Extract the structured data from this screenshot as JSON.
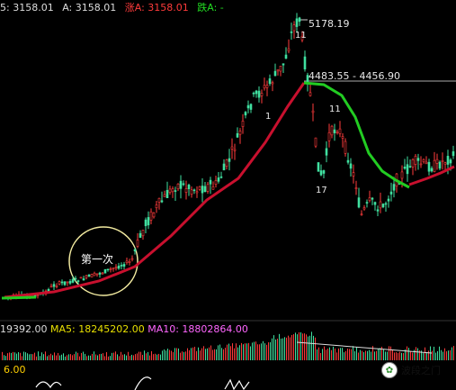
{
  "header": {
    "open": "5: 3158.01",
    "avg": "A: 3158.01",
    "up": "涨A: 3158.01",
    "down": "跌A: -"
  },
  "annotations": {
    "peak": "5178.19",
    "gap_range": "4483.55 - 4456.90",
    "label_11_a": "11",
    "label_11_b": "11",
    "label_1": "1",
    "label_17": "17",
    "circle_text": "第一次"
  },
  "volume": {
    "vol": "19392.00",
    "ma5": "MA5: 18245202.00",
    "ma10": "MA10: 18802864.00",
    "axis": "6.00"
  },
  "watermark": {
    "text": "波段之门",
    "logo": "logo-icon"
  },
  "colors": {
    "ma_red": "#c8102e",
    "ma_green": "#22cc22",
    "up": "#ff3b3b",
    "down": "#22cc66"
  }
}
